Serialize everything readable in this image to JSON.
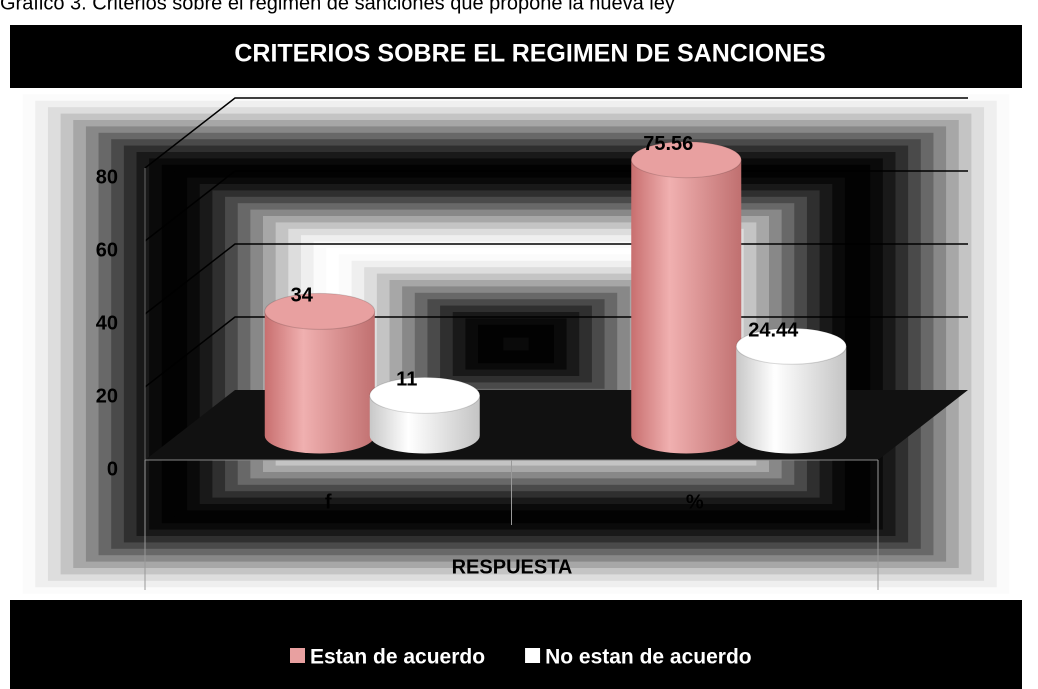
{
  "caption": "Gráfico 3. Criterios sobre el regimen de sanciones que propone la nueva ley",
  "chart_data": {
    "type": "bar",
    "title": "CRITERIOS SOBRE EL REGIMEN DE SANCIONES",
    "x_label": "RESPUESTA",
    "categories": [
      "f",
      "%"
    ],
    "series": [
      {
        "name": "Estan de acuerdo",
        "color": "#e8a0a0",
        "values": [
          34,
          75.56
        ]
      },
      {
        "name": "No estan de acuerdo",
        "color": "#ffffff",
        "values": [
          11,
          24.44
        ]
      }
    ],
    "ylim": [
      0,
      80
    ],
    "yticks": [
      0,
      20,
      40,
      60,
      80
    ],
    "grid": true,
    "legend": "bottom"
  }
}
